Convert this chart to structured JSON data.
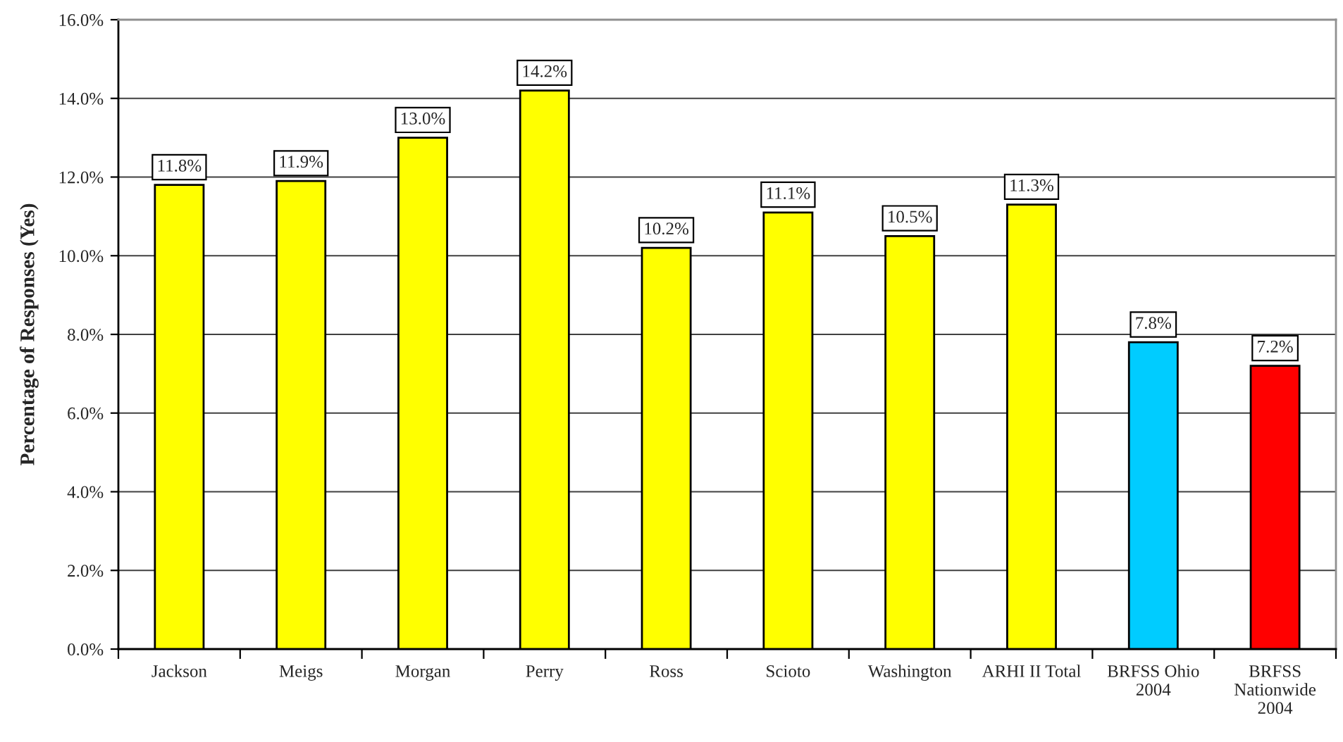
{
  "chart_data": {
    "type": "bar",
    "ylabel": "Percentage of Responses (Yes)",
    "categories": [
      "Jackson",
      "Meigs",
      "Morgan",
      "Perry",
      "Ross",
      "Scioto",
      "Washington",
      "ARHI II Total",
      "BRFSS Ohio\n2004",
      "BRFSS\nNationwide\n2004"
    ],
    "values": [
      11.8,
      11.9,
      13.0,
      14.2,
      10.2,
      11.1,
      10.5,
      11.3,
      7.8,
      7.2
    ],
    "colors": [
      "#ffff00",
      "#ffff00",
      "#ffff00",
      "#ffff00",
      "#ffff00",
      "#ffff00",
      "#ffff00",
      "#ffff00",
      "#00ccff",
      "#ff0000"
    ],
    "value_labels": [
      "11.8%",
      "11.9%",
      "13.0%",
      "14.2%",
      "10.2%",
      "11.1%",
      "10.5%",
      "11.3%",
      "7.8%",
      "7.2%"
    ],
    "ylim": [
      0,
      16
    ],
    "yticks": [
      {
        "value": 0,
        "label": "0.0%"
      },
      {
        "value": 2,
        "label": "2.0%"
      },
      {
        "value": 4,
        "label": "4.0%"
      },
      {
        "value": 6,
        "label": "6.0%"
      },
      {
        "value": 8,
        "label": "8.0%"
      },
      {
        "value": 10,
        "label": "10.0%"
      },
      {
        "value": 12,
        "label": "12.0%"
      },
      {
        "value": 14,
        "label": "14.0%"
      },
      {
        "value": 16,
        "label": "16.0%"
      }
    ],
    "grid": "y"
  }
}
